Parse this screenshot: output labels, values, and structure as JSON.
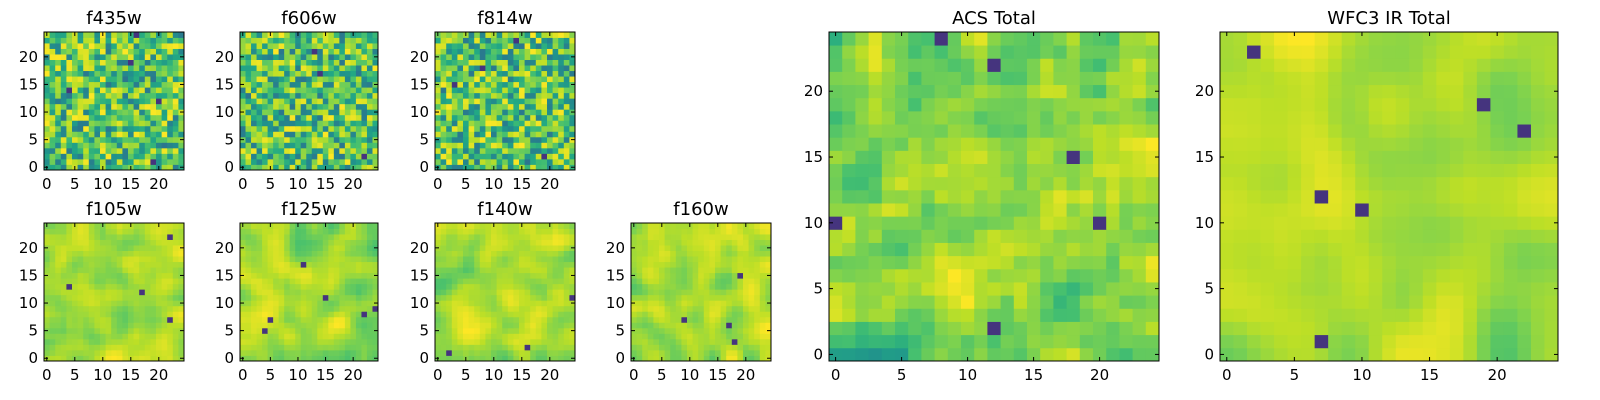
{
  "chart_data": [
    {
      "type": "heatmap",
      "title": "f435w",
      "seed": 11,
      "smooth": 0,
      "grid": 25,
      "xlim": [
        0,
        24
      ],
      "ylim": [
        0,
        24
      ],
      "xticks": [
        0,
        5,
        10,
        15,
        20
      ],
      "yticks": [
        0,
        5,
        10,
        15,
        20
      ],
      "colormap": "viridis"
    },
    {
      "type": "heatmap",
      "title": "f606w",
      "seed": 23,
      "smooth": 0,
      "grid": 25,
      "xlim": [
        0,
        24
      ],
      "ylim": [
        0,
        24
      ],
      "xticks": [
        0,
        5,
        10,
        15,
        20
      ],
      "yticks": [
        0,
        5,
        10,
        15,
        20
      ],
      "colormap": "viridis"
    },
    {
      "type": "heatmap",
      "title": "f814w",
      "seed": 37,
      "smooth": 0,
      "grid": 25,
      "xlim": [
        0,
        24
      ],
      "ylim": [
        0,
        24
      ],
      "xticks": [
        0,
        5,
        10,
        15,
        20
      ],
      "yticks": [
        0,
        5,
        10,
        15,
        20
      ],
      "colormap": "viridis"
    },
    {
      "type": "heatmap",
      "title": "f105w",
      "seed": 41,
      "smooth": 2,
      "grid": 25,
      "xlim": [
        0,
        24
      ],
      "ylim": [
        0,
        24
      ],
      "xticks": [
        0,
        5,
        10,
        15,
        20
      ],
      "yticks": [
        0,
        5,
        10,
        15,
        20
      ],
      "colormap": "viridis"
    },
    {
      "type": "heatmap",
      "title": "f125w",
      "seed": 53,
      "smooth": 2,
      "grid": 25,
      "xlim": [
        0,
        24
      ],
      "ylim": [
        0,
        24
      ],
      "xticks": [
        0,
        5,
        10,
        15,
        20
      ],
      "yticks": [
        0,
        5,
        10,
        15,
        20
      ],
      "colormap": "viridis"
    },
    {
      "type": "heatmap",
      "title": "f140w",
      "seed": 67,
      "smooth": 2,
      "grid": 25,
      "xlim": [
        0,
        24
      ],
      "ylim": [
        0,
        24
      ],
      "xticks": [
        0,
        5,
        10,
        15,
        20
      ],
      "yticks": [
        0,
        5,
        10,
        15,
        20
      ],
      "colormap": "viridis"
    },
    {
      "type": "heatmap",
      "title": "f160w",
      "seed": 79,
      "smooth": 2,
      "grid": 25,
      "xlim": [
        0,
        24
      ],
      "ylim": [
        0,
        24
      ],
      "xticks": [
        0,
        5,
        10,
        15,
        20
      ],
      "yticks": [
        0,
        5,
        10,
        15,
        20
      ],
      "colormap": "viridis"
    },
    {
      "type": "heatmap",
      "title": "ACS Total",
      "seed": 97,
      "smooth": 1,
      "grid": 25,
      "xlim": [
        0,
        24
      ],
      "ylim": [
        0,
        24
      ],
      "xticks": [
        0,
        5,
        10,
        15,
        20
      ],
      "yticks": [
        0,
        5,
        10,
        15,
        20
      ],
      "colormap": "viridis"
    },
    {
      "type": "heatmap",
      "title": "WFC3 IR Total",
      "seed": 131,
      "smooth": 3,
      "grid": 25,
      "xlim": [
        0,
        24
      ],
      "ylim": [
        0,
        24
      ],
      "xticks": [
        0,
        5,
        10,
        15,
        20
      ],
      "yticks": [
        0,
        5,
        10,
        15,
        20
      ],
      "colormap": "viridis"
    }
  ]
}
